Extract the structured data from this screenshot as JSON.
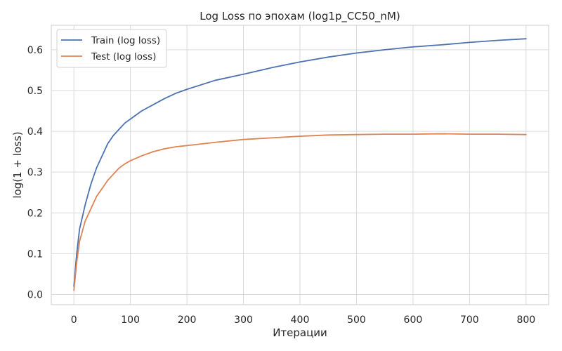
{
  "chart_data": {
    "type": "line",
    "title": "Log Loss по эпохам (log1p_CC50_nM)",
    "xlabel": "Итерации",
    "ylabel": "log(1 + loss)",
    "xlim": [
      -40,
      840
    ],
    "ylim": [
      -0.025,
      0.66
    ],
    "xticks": [
      0,
      100,
      200,
      300,
      400,
      500,
      600,
      700,
      800
    ],
    "yticks": [
      0.0,
      0.1,
      0.2,
      0.3,
      0.4,
      0.5,
      0.6
    ],
    "grid": true,
    "legend_position": "top-left",
    "x": [
      0,
      5,
      10,
      20,
      30,
      40,
      50,
      60,
      70,
      80,
      90,
      100,
      120,
      140,
      160,
      180,
      200,
      250,
      300,
      350,
      400,
      450,
      500,
      550,
      600,
      650,
      700,
      750,
      800
    ],
    "series": [
      {
        "name": "Train (log loss)",
        "color": "#4c72b0",
        "values": [
          0.02,
          0.1,
          0.16,
          0.22,
          0.27,
          0.31,
          0.34,
          0.37,
          0.39,
          0.405,
          0.42,
          0.43,
          0.45,
          0.465,
          0.48,
          0.493,
          0.503,
          0.525,
          0.54,
          0.556,
          0.57,
          0.582,
          0.592,
          0.6,
          0.607,
          0.612,
          0.618,
          0.623,
          0.627
        ]
      },
      {
        "name": "Test (log loss)",
        "color": "#dd8452",
        "values": [
          0.01,
          0.08,
          0.13,
          0.18,
          0.21,
          0.24,
          0.26,
          0.28,
          0.295,
          0.31,
          0.32,
          0.328,
          0.34,
          0.35,
          0.357,
          0.362,
          0.365,
          0.373,
          0.38,
          0.384,
          0.388,
          0.391,
          0.392,
          0.393,
          0.393,
          0.394,
          0.393,
          0.393,
          0.392
        ]
      }
    ]
  }
}
